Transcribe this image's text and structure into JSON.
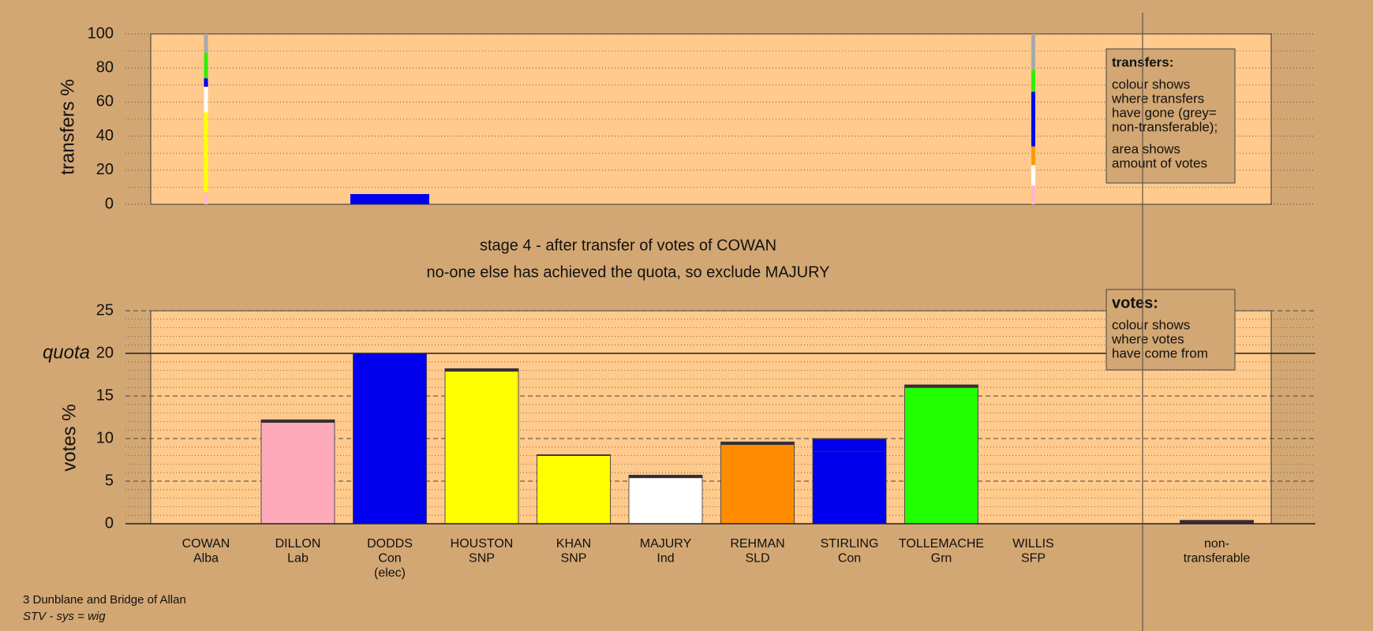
{
  "chart_data": [
    {
      "type": "transfers",
      "ylabel": "transfers %",
      "ylim": [
        0,
        100
      ],
      "yticks": [
        0,
        20,
        40,
        60,
        80,
        100
      ],
      "minor_divisions": 2,
      "stacks": [
        {
          "at": 0,
          "colors": [
            "#ffb6c8",
            "#ffff00",
            "#ffffff",
            "#0000ee",
            "#33ee00",
            "#a8a8a8"
          ],
          "values": [
            7,
            47,
            15,
            5,
            15,
            11
          ]
        },
        {
          "at": 9,
          "colors": [
            "#ffb6c8",
            "#ffffff",
            "#ff9900",
            "#0000ee",
            "#33ee00",
            "#a8a8a8"
          ],
          "values": [
            11,
            12,
            11,
            32,
            13,
            21
          ]
        }
      ],
      "surplus": {
        "at": 2,
        "color": "#0000ee",
        "value": 6
      },
      "note": {
        "title": "transfers:",
        "lines": [
          "colour shows",
          "where transfers",
          "have gone (grey=",
          "non-transferable);",
          "area shows",
          "amount of votes"
        ]
      }
    },
    {
      "type": "bar",
      "ylabel": "votes %",
      "ylim": [
        0,
        25
      ],
      "yticks": [
        0,
        5,
        10,
        15,
        20,
        25
      ],
      "minor_divisions": 5,
      "quota": {
        "value": 20,
        "label": "quota"
      },
      "categories": [
        [
          "COWAN",
          "Alba"
        ],
        [
          "DILLON",
          "Lab"
        ],
        [
          "DODDS",
          "Con",
          "(elec)"
        ],
        [
          "HOUSTON",
          "SNP"
        ],
        [
          "KHAN",
          "SNP"
        ],
        [
          "MAJURY",
          "Ind"
        ],
        [
          "REHMAN",
          "SLD"
        ],
        [
          "STIRLING",
          "Con"
        ],
        [
          "TOLLEMACHE",
          "Grn"
        ],
        [
          "WILLIS",
          "SFP"
        ],
        [
          "non-",
          "transferable"
        ]
      ],
      "series": [
        {
          "colors": [
            "#333333",
            "#ffaabb",
            "#0000ee",
            "#ffff00",
            "#ffff00",
            "#ffffff",
            "#ff8c00",
            "#0000ee",
            "#22ff00",
            "#888888",
            "#888888"
          ],
          "values": [
            0,
            11.9,
            20,
            17.9,
            8,
            5.4,
            9.3,
            8.5,
            16,
            0,
            0
          ]
        },
        {
          "color": "#0000ee",
          "values": [
            0,
            0,
            0,
            0,
            0,
            0,
            0,
            1.4,
            0,
            0,
            0
          ]
        },
        {
          "color": "#3a2a3a",
          "values": [
            0,
            0.3,
            0,
            0.3,
            0.1,
            0.3,
            0.3,
            0.1,
            0.3,
            0,
            0.4
          ]
        }
      ],
      "note": {
        "title": "votes:",
        "lines": [
          "colour shows",
          "where votes",
          "have come from"
        ]
      }
    }
  ],
  "stage": {
    "title": "stage 4 - after transfer of votes of COWAN",
    "subtitle": "no-one else has achieved the quota, so exclude MAJURY"
  },
  "footer": [
    "3 Dunblane and Bridge of Allan",
    "STV - sys = wig"
  ]
}
